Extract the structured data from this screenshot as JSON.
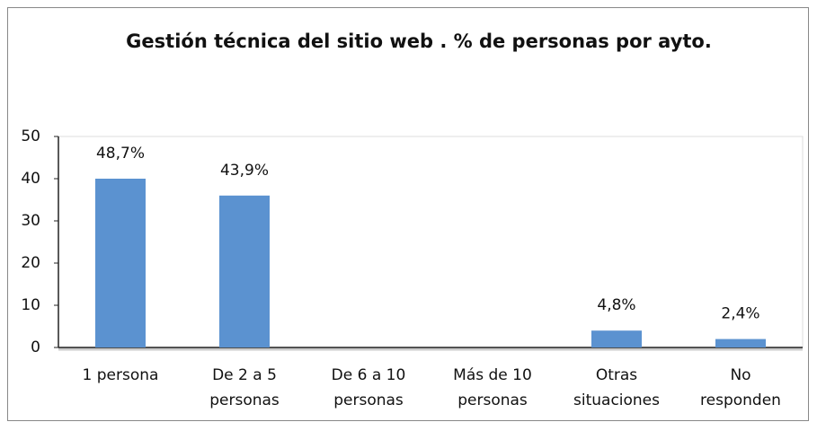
{
  "chart_data": {
    "type": "bar",
    "title": "Gestión técnica del sitio web . % de personas por ayto.",
    "categories": [
      "1 persona",
      "De 2 a 5\npersonas",
      "De 6 a 10\npersonas",
      "Más de 10\npersonas",
      "Otras\nsituaciones",
      "No\nresponden"
    ],
    "values": [
      40,
      36,
      0,
      0,
      4,
      2
    ],
    "annotations": [
      "48,7%",
      "43,9%",
      null,
      null,
      "4,8%",
      "2,4%"
    ],
    "color": "#5b92d0",
    "ylim": [
      0,
      50
    ],
    "yticks": [
      0,
      10,
      20,
      30,
      40,
      50
    ],
    "grid": false
  }
}
